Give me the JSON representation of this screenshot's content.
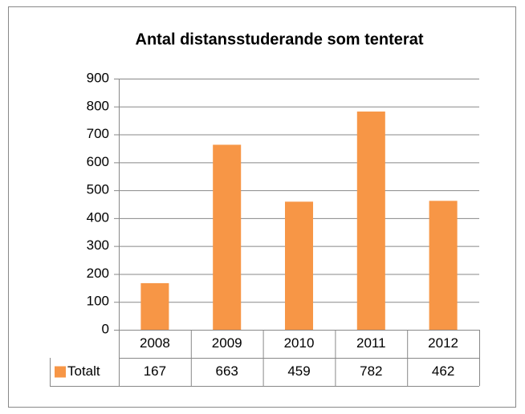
{
  "chart_data": {
    "type": "bar",
    "title": "Antal distansstuderande som tenterat",
    "categories": [
      "2008",
      "2009",
      "2010",
      "2011",
      "2012"
    ],
    "series": [
      {
        "name": "Totalt",
        "color": "#f79646",
        "values": [
          167,
          663,
          459,
          782,
          462
        ]
      }
    ],
    "ylim": [
      0,
      900
    ],
    "yticks": [
      0,
      100,
      200,
      300,
      400,
      500,
      600,
      700,
      800,
      900
    ],
    "grid": true,
    "data_table": true
  }
}
